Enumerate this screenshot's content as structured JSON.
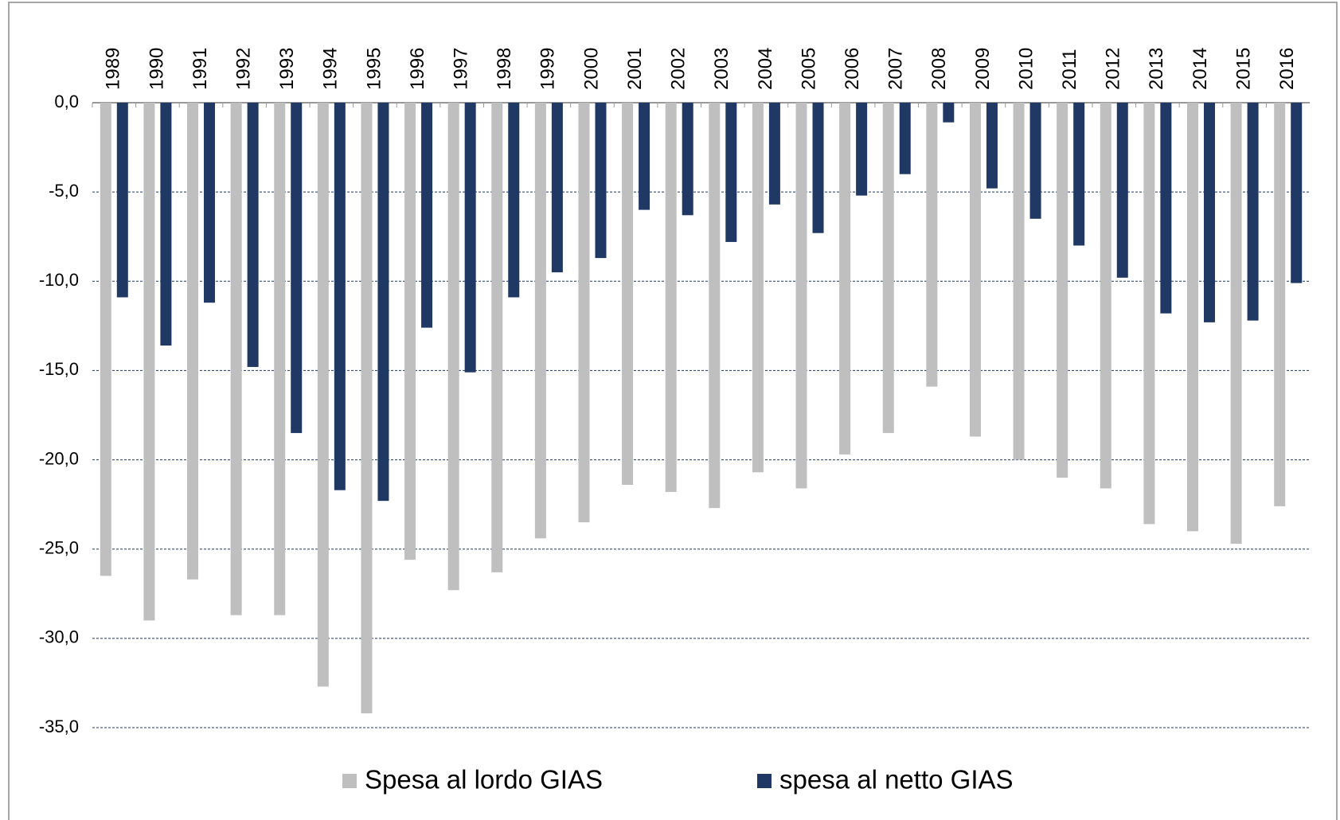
{
  "chart_data": {
    "type": "bar",
    "categories": [
      "1989",
      "1990",
      "1991",
      "1992",
      "1993",
      "1994",
      "1995",
      "1996",
      "1997",
      "1998",
      "1999",
      "2000",
      "2001",
      "2002",
      "2003",
      "2004",
      "2005",
      "2006",
      "2007",
      "2008",
      "2009",
      "2010",
      "2011",
      "2012",
      "2013",
      "2014",
      "2015",
      "2016"
    ],
    "series": [
      {
        "name": "Spesa al lordo GIAS",
        "color": "#bfbfbf",
        "values": [
          -26.5,
          -29.0,
          -26.7,
          -28.7,
          -28.7,
          -32.7,
          -34.2,
          -25.6,
          -27.3,
          -26.3,
          -24.4,
          -23.5,
          -21.4,
          -21.8,
          -22.7,
          -20.7,
          -21.6,
          -19.7,
          -18.5,
          -15.9,
          -18.7,
          -20.0,
          -21.0,
          -21.6,
          -23.6,
          -24.0,
          -24.7,
          -22.6
        ]
      },
      {
        "name": "spesa al netto GIAS",
        "color": "#1f3864",
        "values": [
          -10.9,
          -13.6,
          -11.2,
          -14.8,
          -18.5,
          -21.7,
          -22.3,
          -12.6,
          -15.1,
          -10.9,
          -9.5,
          -8.7,
          -6.0,
          -6.3,
          -7.8,
          -5.7,
          -7.3,
          -5.2,
          -4.0,
          -1.1,
          -4.8,
          -6.5,
          -8.0,
          -9.8,
          -11.8,
          -12.3,
          -12.2,
          -10.1
        ]
      }
    ],
    "ylim": [
      -35,
      0
    ],
    "yticks": [
      {
        "value": 0,
        "label": "0,0"
      },
      {
        "value": -5,
        "label": "-5,0"
      },
      {
        "value": -10,
        "label": "-10,0"
      },
      {
        "value": -15,
        "label": "-15,0"
      },
      {
        "value": -20,
        "label": "-20,0"
      },
      {
        "value": -25,
        "label": "-25,0"
      },
      {
        "value": -30,
        "label": "-30,0"
      },
      {
        "value": -35,
        "label": "-35,0"
      }
    ],
    "grid": true,
    "legend": "bottom"
  }
}
